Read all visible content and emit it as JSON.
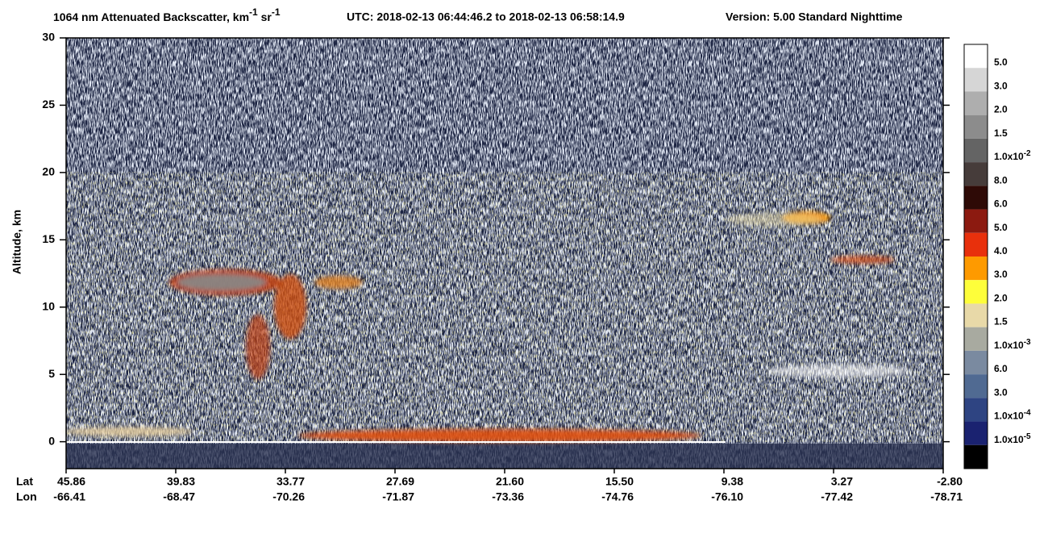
{
  "chart_data": {
    "type": "curtain",
    "title": {
      "quantity": "1064 nm Attenuated Backscatter, km",
      "sup1": "-1",
      "unit2": " sr",
      "sup2": "-1",
      "utc": "UTC:  2018-02-13 06:44:46.2  to  2018-02-13 06:58:14.9",
      "version": "Version: 5.00  Standard  Nighttime"
    },
    "y_label": "Altitude, km",
    "ylim": [
      -2,
      30
    ],
    "yticks": [
      0,
      5,
      10,
      15,
      20,
      25,
      30
    ],
    "x_row_titles": [
      "Lat",
      "Lon"
    ],
    "lat": [
      "45.86",
      "39.83",
      "33.77",
      "27.69",
      "21.60",
      "15.50",
      "9.38",
      "3.27",
      "-2.80"
    ],
    "lon": [
      "-66.41",
      "-68.47",
      "-70.26",
      "-71.87",
      "-73.36",
      "-74.76",
      "-76.10",
      "-77.42",
      "-78.71"
    ],
    "colorbar": {
      "colors": [
        "#ffffff",
        "#d6d6d6",
        "#aeaeae",
        "#8c8c8c",
        "#646464",
        "#463c3a",
        "#2e0a06",
        "#8c1a10",
        "#e8300c",
        "#fe9a00",
        "#fefe3a",
        "#e8d9a8",
        "#a8aaa0",
        "#7a8aa0",
        "#506a92",
        "#2e4482",
        "#1a2270",
        "#000000"
      ],
      "labels": [
        {
          "base": "5.0"
        },
        {
          "base": "3.0"
        },
        {
          "base": "2.0"
        },
        {
          "base": "1.5"
        },
        {
          "base": "1.0x10",
          "exp": "-2"
        },
        {
          "base": "8.0"
        },
        {
          "base": "6.0"
        },
        {
          "base": "5.0"
        },
        {
          "base": "4.0"
        },
        {
          "base": "3.0"
        },
        {
          "base": "2.0"
        },
        {
          "base": "1.5"
        },
        {
          "base": "1.0x10",
          "exp": "-3"
        },
        {
          "base": "6.0"
        },
        {
          "base": "3.0"
        },
        {
          "base": "1.0x10",
          "exp": "-4"
        },
        {
          "base": "1.0x10",
          "exp": "-5"
        }
      ]
    }
  }
}
